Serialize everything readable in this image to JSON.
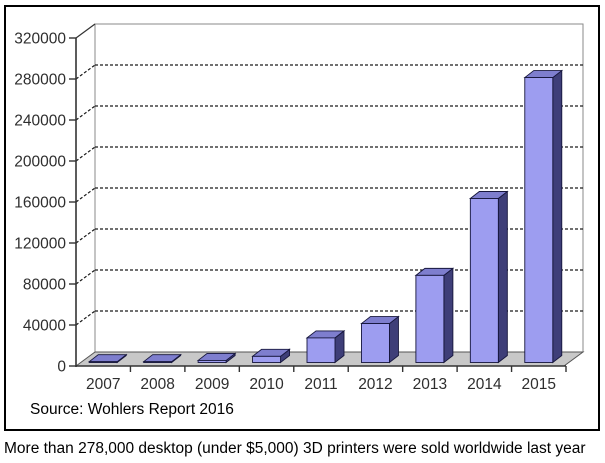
{
  "chart_data": {
    "type": "bar",
    "style": "3d-column",
    "title": "",
    "xlabel": "",
    "ylabel": "",
    "categories": [
      "2007",
      "2008",
      "2009",
      "2010",
      "2011",
      "2012",
      "2013",
      "2014",
      "2015"
    ],
    "values": [
      100,
      400,
      2000,
      6000,
      24000,
      38000,
      85000,
      160000,
      278000
    ],
    "ylim": [
      0,
      320000
    ],
    "ytick_step": 40000,
    "ytick_labels": [
      "0",
      "40000",
      "80000",
      "120000",
      "160000",
      "200000",
      "240000",
      "280000",
      "320000"
    ],
    "grid": "dashed-horizontal",
    "legend": "none",
    "source_note": "Source: Wohlers Report 2016"
  },
  "caption": "More than 278,000 desktop (under $5,000) 3D printers were sold worldwide last year",
  "colors": {
    "bar_front": "#9d9df0",
    "bar_side": "#3e3e78",
    "bar_top": "#7e7ece",
    "bar_outline": "#16163c",
    "floor_fill": "#c8c8c8",
    "floor_edge": "#555555",
    "wall_border": "#8a8a8a",
    "axis": "#333333",
    "grid_color": "#1a1a1a",
    "text": "#2e2e2e",
    "border": "#000000"
  }
}
